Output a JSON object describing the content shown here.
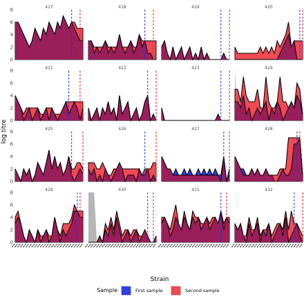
{
  "chart_data": {
    "type": "area",
    "ylabel": "log titre",
    "xlabel": "Strain",
    "ylim": [
      0,
      8
    ],
    "yticks": [
      0,
      2,
      4,
      6,
      8
    ],
    "x_count": 25,
    "colors": {
      "first": "#2f3fe0",
      "second": "#f04a55",
      "overlap": "#9a1e5a",
      "special": "#b5b5b5",
      "first_line": "#2233ee",
      "second_line": "#e01a2a"
    },
    "legend": {
      "title": "Sample",
      "placement": "bottom",
      "items": [
        {
          "key": "first",
          "label": "First sample"
        },
        {
          "key": "second",
          "label": "Second sample"
        }
      ]
    },
    "panels": [
      {
        "title": "417",
        "first": [
          6,
          6,
          5,
          4,
          3,
          2,
          3,
          5,
          4,
          3,
          5,
          4,
          6,
          5,
          4,
          6,
          5,
          7,
          6,
          5,
          6,
          5,
          4,
          3,
          3
        ],
        "second": [
          6,
          6,
          5,
          4,
          3,
          2,
          3,
          5,
          4,
          3,
          5,
          4,
          6,
          5,
          4,
          6,
          5,
          7,
          6,
          5,
          6,
          6,
          5,
          5,
          5
        ],
        "first_line": 20,
        "second_line": 23
      },
      {
        "title": "418",
        "first": [
          3,
          3,
          1,
          2,
          1,
          2,
          3,
          1,
          2,
          1,
          2,
          4,
          2,
          1,
          2,
          3,
          1,
          2,
          4,
          2,
          3,
          1,
          1,
          0,
          0
        ],
        "second": [
          3,
          3,
          2,
          2,
          2,
          2,
          3,
          2,
          2,
          2,
          2,
          4,
          2,
          2,
          2,
          3,
          2,
          2,
          4,
          3,
          3,
          3,
          3,
          3,
          3
        ],
        "first_line": 20,
        "second_line": 23
      },
      {
        "title": "419",
        "first": [
          2,
          3,
          1,
          0,
          2,
          0,
          1,
          2,
          0,
          1,
          2,
          0,
          1,
          0,
          2,
          0,
          1,
          0,
          0,
          0,
          0,
          0,
          1,
          0,
          0
        ],
        "second": [
          2,
          3,
          1,
          0,
          2,
          0,
          1,
          2,
          0,
          1,
          2,
          0,
          1,
          0,
          2,
          0,
          1,
          0,
          0,
          0,
          0,
          0,
          1,
          0,
          0
        ],
        "first_line": 21,
        "second_line": 24
      },
      {
        "title": "420",
        "first": [
          0,
          0,
          0,
          0,
          0,
          0,
          0,
          0,
          0,
          0,
          0,
          0,
          0,
          0,
          0,
          0,
          1,
          2,
          3,
          4,
          2,
          3,
          0,
          0,
          0
        ],
        "second": [
          2,
          1,
          1,
          1,
          1,
          1,
          1,
          1,
          1,
          2,
          1,
          2,
          1,
          2,
          1,
          3,
          2,
          3,
          4,
          6,
          2,
          3,
          3,
          3,
          3
        ],
        "first_line": 23,
        "second_line": 24
      },
      {
        "title": "421",
        "first": [
          4,
          3,
          2,
          0,
          1,
          2,
          0,
          1,
          2,
          0,
          1,
          2,
          0,
          2,
          1,
          0,
          1,
          2,
          3,
          1,
          2,
          3,
          2,
          0,
          2
        ],
        "second": [
          4,
          3,
          2,
          1,
          2,
          2,
          2,
          2,
          2,
          1,
          1,
          2,
          2,
          2,
          1,
          1,
          1,
          2,
          3,
          3,
          3,
          3,
          3,
          3,
          3
        ],
        "first_line": 19,
        "second_line": 23
      },
      {
        "title": "422",
        "first": [
          2,
          0,
          1,
          2,
          0,
          2,
          1,
          3,
          1,
          2,
          0,
          4,
          1,
          2,
          3,
          0,
          1,
          2,
          0,
          1,
          3,
          4,
          0,
          1,
          0
        ],
        "second": [
          2,
          0,
          1,
          2,
          0,
          2,
          1,
          3,
          1,
          2,
          0,
          4,
          1,
          2,
          3,
          0,
          1,
          2,
          0,
          1,
          3,
          4,
          0,
          1,
          0
        ],
        "first_line": 21,
        "second_line": 24
      },
      {
        "title": "423",
        "first": [
          2,
          0,
          0,
          0,
          0,
          0,
          0,
          0,
          0,
          0,
          0,
          0,
          0,
          0,
          0,
          0,
          0,
          0,
          0,
          0,
          1,
          0,
          0,
          0,
          0
        ],
        "second": [
          2,
          0,
          0,
          0,
          0,
          0,
          0,
          0,
          0,
          0,
          0,
          0,
          0,
          0,
          0,
          0,
          0,
          0,
          0,
          0,
          1,
          0,
          0,
          0,
          0
        ],
        "first_line": 21,
        "second_line": 24
      },
      {
        "title": "424",
        "first": [
          3,
          3,
          2,
          4,
          1,
          2,
          0,
          1,
          2,
          1,
          2,
          3,
          0,
          2,
          1,
          3,
          2,
          0,
          1,
          2,
          3,
          2,
          4,
          3,
          1
        ],
        "second": [
          5,
          5,
          3,
          7,
          4,
          3,
          3,
          3,
          5,
          2,
          2,
          7,
          3,
          2,
          2,
          3,
          7,
          3,
          3,
          2,
          3,
          2,
          6,
          5,
          1
        ],
        "special": [
          8,
          0,
          0,
          0,
          0,
          0,
          0,
          0,
          0,
          0,
          0,
          0,
          0,
          0,
          0,
          0,
          0,
          0,
          0,
          0,
          0,
          0,
          0,
          0,
          0
        ],
        "first_line": null,
        "second_line": null
      },
      {
        "title": "425",
        "first": [
          2,
          1,
          0,
          2,
          1,
          2,
          0,
          1,
          3,
          2,
          1,
          3,
          5,
          2,
          4,
          2,
          3,
          1,
          2,
          4,
          1,
          0,
          1,
          2,
          1
        ],
        "second": [
          2,
          1,
          0,
          2,
          1,
          2,
          0,
          1,
          3,
          2,
          1,
          3,
          5,
          2,
          4,
          2,
          3,
          1,
          2,
          4,
          2,
          2,
          3,
          3,
          2
        ],
        "first_line": 20,
        "second_line": 24
      },
      {
        "title": "426",
        "first": [
          2,
          1,
          2,
          0,
          1,
          0,
          2,
          1,
          0,
          1,
          2,
          3,
          2,
          0,
          1,
          1,
          1,
          0,
          2,
          1,
          1,
          2,
          0,
          1,
          0
        ],
        "second": [
          3,
          3,
          3,
          2,
          2,
          3,
          2,
          1,
          1,
          2,
          2,
          3,
          2,
          2,
          2,
          2,
          2,
          2,
          2,
          1,
          2,
          2,
          2,
          3,
          3
        ],
        "first_line": 20,
        "second_line": 24
      },
      {
        "title": "427",
        "first": [
          4,
          3,
          2,
          2,
          1,
          2,
          1,
          1,
          2,
          1,
          2,
          1,
          1,
          2,
          1,
          2,
          1,
          2,
          1,
          2,
          1,
          1,
          4,
          0,
          2
        ],
        "second": [
          4,
          3,
          2,
          2,
          1,
          1,
          1,
          1,
          1,
          1,
          1,
          1,
          1,
          1,
          1,
          1,
          1,
          1,
          1,
          1,
          1,
          0,
          4,
          0,
          1
        ],
        "first_line": 22,
        "second_line": 24
      },
      {
        "title": "428",
        "first": [
          4,
          3,
          2,
          2,
          1,
          1,
          2,
          1,
          2,
          1,
          1,
          2,
          1,
          1,
          0,
          0,
          1,
          2,
          1,
          1,
          2,
          6,
          6,
          7,
          1
        ],
        "second": [
          4,
          3,
          2,
          1,
          1,
          1,
          2,
          1,
          2,
          1,
          1,
          2,
          1,
          1,
          1,
          1,
          2,
          2,
          2,
          7,
          7,
          7,
          7,
          7,
          1
        ],
        "first_line": 22,
        "second_line": 23
      },
      {
        "title": "429",
        "first": [
          3,
          4,
          3,
          1,
          0,
          2,
          1,
          0,
          2,
          0,
          1,
          2,
          0,
          1,
          4,
          2,
          0,
          2,
          1,
          2,
          3,
          5,
          5,
          4,
          4
        ],
        "second": [
          4,
          5,
          3,
          1,
          0,
          2,
          1,
          0,
          2,
          1,
          1,
          2,
          1,
          1,
          4,
          2,
          1,
          3,
          3,
          3,
          4,
          6,
          5,
          5,
          5
        ],
        "first_line": 22,
        "second_line": 23
      },
      {
        "title": "430",
        "first": [
          0,
          0,
          0,
          0,
          1,
          0,
          2,
          1,
          3,
          1,
          4,
          2,
          0,
          1,
          2,
          0,
          1,
          2,
          0,
          1,
          2,
          1,
          0,
          0,
          1
        ],
        "second": [
          0,
          0,
          0,
          0,
          1,
          0,
          3,
          2,
          4,
          2,
          5,
          3,
          1,
          2,
          2,
          1,
          2,
          2,
          1,
          1,
          2,
          1,
          0,
          0,
          1
        ],
        "special": [
          8,
          8,
          8,
          0,
          0,
          0,
          0,
          0,
          0,
          0,
          0,
          0,
          0,
          0,
          0,
          0,
          0,
          0,
          0,
          0,
          0,
          0,
          0,
          0,
          0
        ],
        "first_line": 21,
        "second_line": 23
      },
      {
        "title": "431",
        "first": [
          3,
          4,
          3,
          1,
          2,
          4,
          3,
          2,
          4,
          3,
          2,
          4,
          3,
          4,
          2,
          3,
          4,
          2,
          3,
          4,
          3,
          5,
          2,
          4,
          3
        ],
        "second": [
          4,
          4,
          3,
          2,
          4,
          6,
          3,
          2,
          5,
          3,
          2,
          5,
          4,
          4,
          3,
          3,
          4,
          3,
          4,
          4,
          3,
          5,
          3,
          4,
          4
        ],
        "first_line": 21,
        "second_line": 23
      },
      {
        "title": "432",
        "first": [
          3,
          2,
          3,
          1,
          0,
          3,
          1,
          2,
          3,
          0,
          2,
          1,
          3,
          0,
          1,
          2,
          3,
          1,
          4,
          0,
          1,
          2,
          3,
          1,
          0
        ],
        "second": [
          3,
          2,
          3,
          1,
          1,
          4,
          2,
          2,
          4,
          1,
          2,
          2,
          3,
          1,
          2,
          3,
          3,
          2,
          5,
          2,
          5,
          3,
          3,
          2,
          1
        ],
        "first_line": 21,
        "second_line": 24
      }
    ]
  }
}
